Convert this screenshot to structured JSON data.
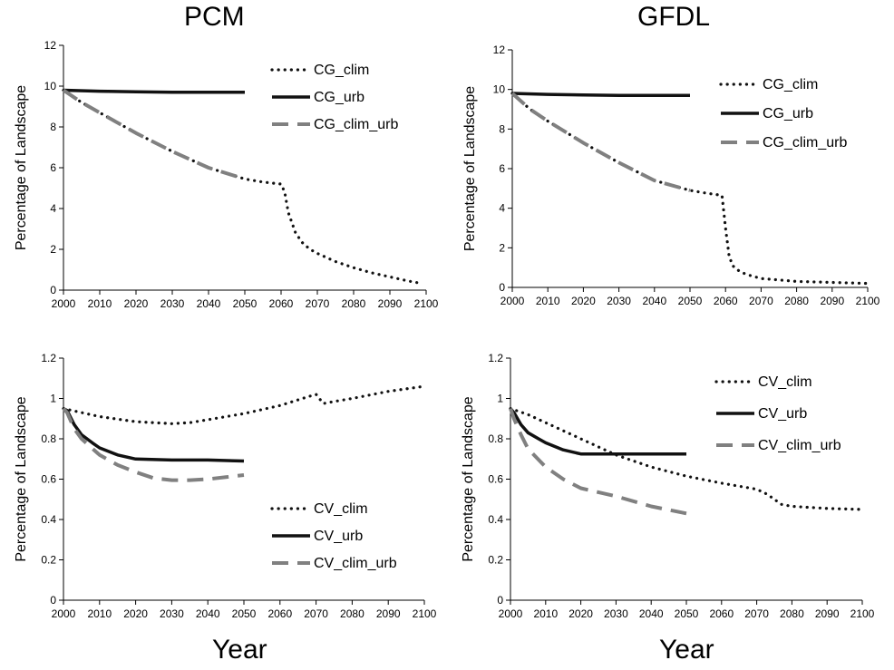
{
  "figure": {
    "col_titles": [
      "PCM",
      "GFDL"
    ],
    "xlabel": "Year"
  },
  "chart_data": [
    {
      "id": "pcm-cg",
      "type": "line",
      "title": "",
      "ylabel": "Percentage of Landscape",
      "xlim": [
        2000,
        2100
      ],
      "ylim": [
        0,
        12
      ],
      "xticks": [
        2000,
        2010,
        2020,
        2030,
        2040,
        2050,
        2060,
        2070,
        2080,
        2090,
        2100
      ],
      "yticks": [
        "0",
        "2",
        "4",
        "6",
        "8",
        "10",
        "12"
      ],
      "legend_position": "top-right",
      "series": [
        {
          "name": "CG_clim",
          "style": "dotted",
          "color": "#111111",
          "x": [
            2000,
            2005,
            2010,
            2020,
            2030,
            2040,
            2050,
            2055,
            2060,
            2061,
            2062,
            2064,
            2066,
            2068,
            2070,
            2075,
            2080,
            2085,
            2090,
            2095,
            2099
          ],
          "y": [
            9.8,
            9.2,
            8.7,
            7.7,
            6.8,
            6.0,
            5.45,
            5.3,
            5.2,
            4.8,
            3.8,
            2.8,
            2.3,
            2.0,
            1.8,
            1.4,
            1.1,
            0.85,
            0.65,
            0.45,
            0.32
          ]
        },
        {
          "name": "CG_urb",
          "style": "solid",
          "color": "#111111",
          "x": [
            2000,
            2010,
            2020,
            2030,
            2040,
            2050
          ],
          "y": [
            9.8,
            9.75,
            9.72,
            9.7,
            9.7,
            9.7
          ]
        },
        {
          "name": "CG_clim_urb",
          "style": "dashed",
          "color": "#808080",
          "x": [
            2000,
            2005,
            2010,
            2020,
            2030,
            2040,
            2050
          ],
          "y": [
            9.8,
            9.2,
            8.7,
            7.7,
            6.8,
            6.0,
            5.45
          ]
        }
      ]
    },
    {
      "id": "gfdl-cg",
      "type": "line",
      "title": "",
      "ylabel": "Percentage of Landscape",
      "xlim": [
        2000,
        2100
      ],
      "ylim": [
        0,
        12
      ],
      "xticks": [
        2000,
        2010,
        2020,
        2030,
        2040,
        2050,
        2060,
        2070,
        2080,
        2090,
        2100
      ],
      "yticks": [
        "0",
        "2",
        "4",
        "6",
        "8",
        "10",
        "12"
      ],
      "legend_position": "top-right",
      "series": [
        {
          "name": "CG_clim",
          "style": "dotted",
          "color": "#111111",
          "x": [
            2000,
            2005,
            2010,
            2020,
            2030,
            2040,
            2050,
            2055,
            2059,
            2060,
            2061,
            2062,
            2064,
            2066,
            2070,
            2080,
            2090,
            2100
          ],
          "y": [
            9.8,
            9.0,
            8.4,
            7.3,
            6.3,
            5.4,
            4.9,
            4.75,
            4.65,
            3.0,
            1.6,
            1.1,
            0.8,
            0.65,
            0.45,
            0.3,
            0.25,
            0.2
          ]
        },
        {
          "name": "CG_urb",
          "style": "solid",
          "color": "#111111",
          "x": [
            2000,
            2010,
            2020,
            2030,
            2040,
            2050
          ],
          "y": [
            9.8,
            9.75,
            9.72,
            9.7,
            9.7,
            9.7
          ]
        },
        {
          "name": "CG_clim_urb",
          "style": "dashed",
          "color": "#808080",
          "x": [
            2000,
            2005,
            2010,
            2020,
            2030,
            2040,
            2050
          ],
          "y": [
            9.8,
            9.0,
            8.4,
            7.3,
            6.3,
            5.4,
            4.9
          ]
        }
      ]
    },
    {
      "id": "pcm-cv",
      "type": "line",
      "title": "",
      "ylabel": "Percentage of Landscape",
      "xlim": [
        2000,
        2100
      ],
      "ylim": [
        0,
        1.2
      ],
      "xticks": [
        2000,
        2010,
        2020,
        2030,
        2040,
        2050,
        2060,
        2070,
        2080,
        2090,
        2100
      ],
      "yticks": [
        "0",
        "0.2",
        "0.4",
        "0.6",
        "0.8",
        "1",
        "1.2"
      ],
      "legend_position": "bottom-right",
      "series": [
        {
          "name": "CV_clim",
          "style": "dotted",
          "color": "#111111",
          "x": [
            2000,
            2010,
            2020,
            2030,
            2035,
            2040,
            2050,
            2060,
            2068,
            2070,
            2072,
            2075,
            2080,
            2090,
            2100
          ],
          "y": [
            0.95,
            0.91,
            0.885,
            0.875,
            0.88,
            0.895,
            0.925,
            0.965,
            1.01,
            1.02,
            0.975,
            0.985,
            1.0,
            1.035,
            1.06
          ]
        },
        {
          "name": "CV_urb",
          "style": "solid",
          "color": "#111111",
          "x": [
            2000,
            2001,
            2003,
            2005,
            2008,
            2010,
            2015,
            2020,
            2030,
            2040,
            2050
          ],
          "y": [
            0.95,
            0.94,
            0.87,
            0.82,
            0.78,
            0.755,
            0.72,
            0.7,
            0.695,
            0.695,
            0.69
          ]
        },
        {
          "name": "CV_clim_urb",
          "style": "dashed",
          "color": "#808080",
          "x": [
            2000,
            2001,
            2003,
            2005,
            2010,
            2015,
            2020,
            2025,
            2030,
            2035,
            2040,
            2045,
            2050
          ],
          "y": [
            0.95,
            0.93,
            0.85,
            0.8,
            0.72,
            0.67,
            0.635,
            0.605,
            0.595,
            0.595,
            0.6,
            0.61,
            0.62
          ]
        }
      ]
    },
    {
      "id": "gfdl-cv",
      "type": "line",
      "title": "",
      "ylabel": "Percentage of Landscape",
      "xlim": [
        2000,
        2100
      ],
      "ylim": [
        0,
        1.2
      ],
      "xticks": [
        2000,
        2010,
        2020,
        2030,
        2040,
        2050,
        2060,
        2070,
        2080,
        2090,
        2100
      ],
      "yticks": [
        "0",
        "0.2",
        "0.4",
        "0.6",
        "0.8",
        "1",
        "1.2"
      ],
      "legend_position": "top-right",
      "series": [
        {
          "name": "CV_clim",
          "style": "dotted",
          "color": "#111111",
          "x": [
            2000,
            2005,
            2010,
            2020,
            2030,
            2040,
            2050,
            2060,
            2070,
            2073,
            2077,
            2080,
            2090,
            2100
          ],
          "y": [
            0.95,
            0.92,
            0.88,
            0.8,
            0.72,
            0.66,
            0.615,
            0.58,
            0.55,
            0.525,
            0.475,
            0.465,
            0.455,
            0.45
          ]
        },
        {
          "name": "CV_urb",
          "style": "solid",
          "color": "#111111",
          "x": [
            2000,
            2001,
            2003,
            2005,
            2008,
            2010,
            2015,
            2020,
            2030,
            2040,
            2050
          ],
          "y": [
            0.95,
            0.93,
            0.87,
            0.83,
            0.8,
            0.78,
            0.745,
            0.725,
            0.725,
            0.725,
            0.725
          ]
        },
        {
          "name": "CV_clim_urb",
          "style": "dashed",
          "color": "#808080",
          "x": [
            2000,
            2001,
            2003,
            2005,
            2010,
            2015,
            2020,
            2030,
            2040,
            2050
          ],
          "y": [
            0.95,
            0.9,
            0.82,
            0.75,
            0.66,
            0.6,
            0.555,
            0.515,
            0.465,
            0.43
          ]
        }
      ]
    }
  ]
}
